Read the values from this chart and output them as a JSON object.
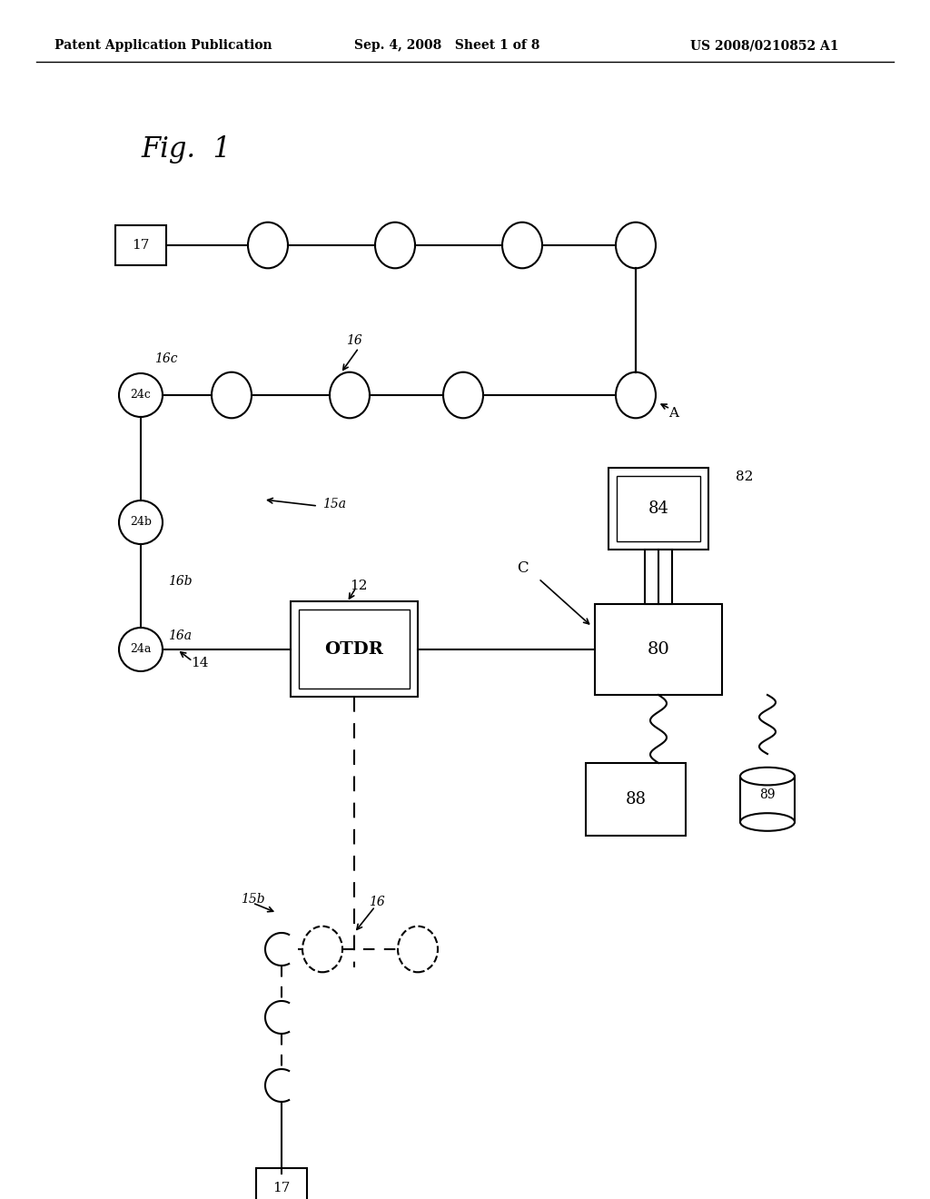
{
  "bg_color": "#ffffff",
  "header_left": "Patent Application Publication",
  "header_mid": "Sep. 4, 2008   Sheet 1 of 8",
  "header_right": "US 2008/0210852 A1",
  "fig_label": "Fig.  1",
  "title_fontsize": 18,
  "header_fontsize": 10
}
